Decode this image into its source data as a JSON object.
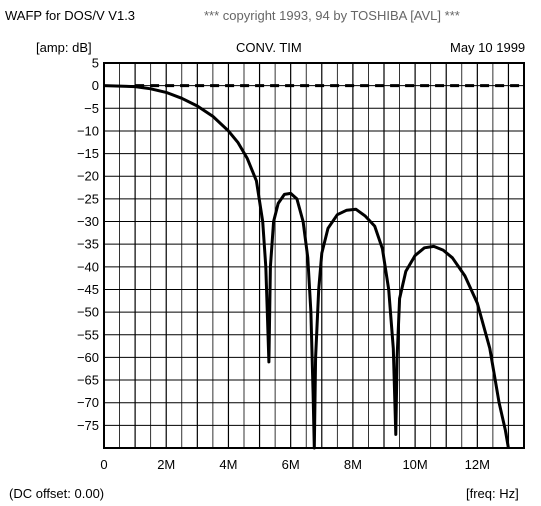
{
  "header": {
    "program": "WAFP for DOS/V V1.3",
    "copyright": "*** copyright 1993, 94 by TOSHIBA [AVL] ***"
  },
  "subheader": {
    "unit": "[amp: dB]",
    "title": "CONV. TIM",
    "date": "May 10 1999"
  },
  "footer": {
    "dc_offset": "(DC offset: 0.00)",
    "freq_unit": "[freq: Hz]"
  },
  "chart_data": {
    "type": "line",
    "title": "CONV. TIM",
    "xlabel": "[freq: Hz]",
    "ylabel": "[amp: dB]",
    "xlim": [
      0,
      13.5
    ],
    "ylim": [
      -80,
      5
    ],
    "x_unit": "MHz",
    "grid": true,
    "x_ticks": [
      {
        "value": 0,
        "label": "0"
      },
      {
        "value": 2,
        "label": "2M"
      },
      {
        "value": 4,
        "label": "4M"
      },
      {
        "value": 6,
        "label": "6M"
      },
      {
        "value": 8,
        "label": "8M"
      },
      {
        "value": 10,
        "label": "10M"
      },
      {
        "value": 12,
        "label": "12M"
      }
    ],
    "y_ticks": [
      {
        "value": 5,
        "label": "5"
      },
      {
        "value": 0,
        "label": "0"
      },
      {
        "value": -5,
        "label": "−5"
      },
      {
        "value": -10,
        "label": "−10"
      },
      {
        "value": -15,
        "label": "−15"
      },
      {
        "value": -20,
        "label": "−20"
      },
      {
        "value": -25,
        "label": "−25"
      },
      {
        "value": -30,
        "label": "−30"
      },
      {
        "value": -35,
        "label": "−35"
      },
      {
        "value": -40,
        "label": "−40"
      },
      {
        "value": -45,
        "label": "−45"
      },
      {
        "value": -50,
        "label": "−50"
      },
      {
        "value": -55,
        "label": "−55"
      },
      {
        "value": -60,
        "label": "−60"
      },
      {
        "value": -65,
        "label": "−65"
      },
      {
        "value": -70,
        "label": "−70"
      },
      {
        "value": -75,
        "label": "−75"
      }
    ],
    "series": [
      {
        "style": "solid",
        "x": [
          0,
          1,
          1.5,
          2,
          2.5,
          3,
          3.5,
          4,
          4.3,
          4.6,
          4.9,
          5.1,
          5.2,
          5.25,
          5.3,
          5.35,
          5.45,
          5.6,
          5.8,
          6.0,
          6.2,
          6.4,
          6.55,
          6.65,
          6.72,
          6.76,
          6.8,
          6.9,
          7.0,
          7.2,
          7.5,
          7.8,
          8.1,
          8.4,
          8.7,
          8.95,
          9.15,
          9.3,
          9.38,
          9.42,
          9.5,
          9.7,
          10.0,
          10.3,
          10.6,
          10.9,
          11.2,
          11.6,
          12.0,
          12.4,
          12.7,
          12.9,
          13.0
        ],
        "y": [
          0,
          -0.2,
          -0.7,
          -1.5,
          -2.8,
          -4.5,
          -6.8,
          -10,
          -12.5,
          -16,
          -21,
          -30,
          -40,
          -50,
          -61,
          -40,
          -30,
          -26,
          -24,
          -23.8,
          -25,
          -30,
          -38,
          -50,
          -68,
          -80,
          -60,
          -45,
          -37,
          -31.5,
          -28.5,
          -27.5,
          -27.3,
          -28.8,
          -31,
          -36,
          -45,
          -58,
          -77,
          -60,
          -47,
          -41,
          -37.5,
          -35.8,
          -35.5,
          -36.3,
          -38,
          -42,
          -48,
          -58,
          -70,
          -76,
          -80
        ]
      },
      {
        "style": "dashed",
        "x": [
          1,
          13.5
        ],
        "y": [
          0,
          0
        ]
      }
    ]
  }
}
